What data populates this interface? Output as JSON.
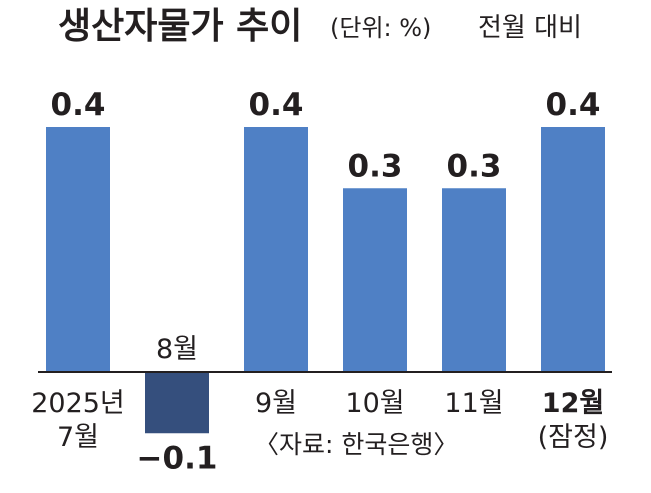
{
  "title": "생산자물가 추이",
  "unit": "(단위: %)",
  "basis": "전월 대비",
  "source": "〈자료: 한국은행〉",
  "colors": {
    "positive": "#4f80c5",
    "negative": "#354f7d",
    "axis": "#231f20"
  },
  "chart_data": {
    "type": "bar",
    "title": "생산자물가 추이",
    "ylabel": "",
    "xlabel": "",
    "ylim": [
      -0.1,
      0.4
    ],
    "categories": [
      "2025년 7월",
      "8월",
      "9월",
      "10월",
      "11월",
      "12월 (잠정)"
    ],
    "category_lines": [
      [
        "2025년",
        "7월"
      ],
      [
        "8월"
      ],
      [
        "9월"
      ],
      [
        "10월"
      ],
      [
        "11월"
      ],
      [
        "12월",
        "(잠정)"
      ]
    ],
    "values": [
      0.4,
      -0.1,
      0.4,
      0.3,
      0.3,
      0.4
    ],
    "value_labels": [
      "0.4",
      "−0.1",
      "0.4",
      "0.3",
      "0.3",
      "0.4"
    ],
    "grid": false,
    "legend": "none"
  }
}
